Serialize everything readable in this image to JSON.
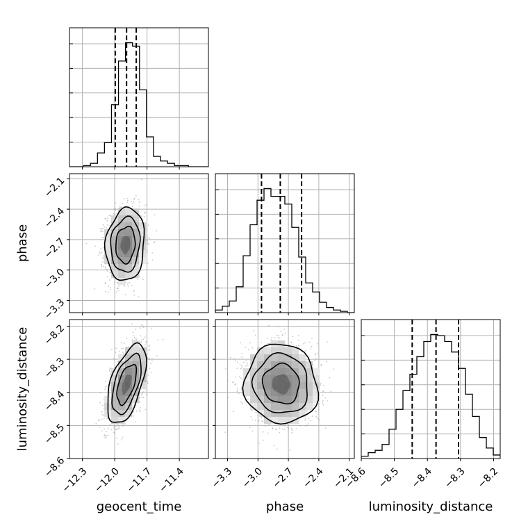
{
  "chart_data": {
    "type": "corner",
    "parameters": [
      "geocent_time",
      "phase",
      "luminosity_distance"
    ],
    "axis_labels": {
      "geocent_time": "geocent_time",
      "phase": "phase",
      "luminosity_distance": "luminosity_distance"
    },
    "ranges": {
      "geocent_time": [
        -12.42,
        -11.13
      ],
      "phase": [
        -3.42,
        -2.05
      ],
      "luminosity_distance": [
        -8.6,
        -8.18
      ]
    },
    "ticks": {
      "geocent_time": [
        -12.3,
        -12.0,
        -11.7,
        -11.4
      ],
      "phase": [
        -3.3,
        -3.0,
        -2.7,
        -2.4,
        -2.1
      ],
      "luminosity_distance": [
        -8.6,
        -8.5,
        -8.4,
        -8.3,
        -8.2
      ]
    },
    "tick_labels": {
      "geocent_time": [
        "−12.3",
        "−12.0",
        "−11.7",
        "−11.4"
      ],
      "phase": [
        "−3.3",
        "−3.0",
        "−2.7",
        "−2.4",
        "−2.1"
      ],
      "luminosity_distance": [
        "−8.6",
        "−8.5",
        "−8.4",
        "−8.3",
        "−8.2"
      ]
    },
    "histograms": {
      "geocent_time": {
        "edges": [
          -12.42,
          -12.355,
          -12.29,
          -12.225,
          -12.16,
          -12.095,
          -12.03,
          -11.965,
          -11.9,
          -11.835,
          -11.77,
          -11.705,
          -11.64,
          -11.575,
          -11.51,
          -11.445,
          -11.38,
          -11.315,
          -11.25,
          -11.185,
          -11.13
        ],
        "counts": [
          0,
          0,
          1,
          3,
          12,
          21,
          54,
          92,
          108,
          105,
          67,
          26,
          9,
          5,
          3,
          1,
          1,
          0,
          0,
          0
        ]
      },
      "phase": {
        "edges": [
          -3.42,
          -3.3515,
          -3.283,
          -3.2145,
          -3.146,
          -3.0775,
          -3.009,
          -2.9405,
          -2.872,
          -2.8035,
          -2.735,
          -2.6665,
          -2.598,
          -2.5295,
          -2.461,
          -2.3925,
          -2.324,
          -2.2555,
          -2.187,
          -2.1185,
          -2.05
        ],
        "counts": [
          2,
          5,
          9,
          20,
          44,
          68,
          87,
          96,
          90,
          90,
          84,
          66,
          43,
          23,
          16,
          8,
          4,
          2,
          1,
          0
        ]
      },
      "luminosity_distance": {
        "edges": [
          -8.6,
          -8.579,
          -8.558,
          -8.537,
          -8.516,
          -8.495,
          -8.474,
          -8.453,
          -8.432,
          -8.411,
          -8.39,
          -8.369,
          -8.348,
          -8.327,
          -8.306,
          -8.285,
          -8.264,
          -8.243,
          -8.222,
          -8.201,
          -8.18
        ],
        "counts": [
          2,
          5,
          7,
          12,
          25,
          42,
          58,
          72,
          87,
          100,
          106,
          105,
          100,
          91,
          77,
          55,
          36,
          18,
          9,
          3
        ]
      }
    },
    "quantiles": {
      "geocent_time": [
        -11.995,
        -11.89,
        -11.8
      ],
      "phase": [
        -2.965,
        -2.78,
        -2.57
      ],
      "luminosity_distance": [
        -8.446,
        -8.374,
        -8.306
      ]
    },
    "posterior_2d": {
      "phase_vs_geocent_time": {
        "x": "geocent_time",
        "y": "phase",
        "center": [
          -11.9,
          -2.75
        ],
        "sigma": [
          0.09,
          0.18
        ],
        "correlation": 0.1
      },
      "luminosity_distance_vs_geocent_time": {
        "x": "geocent_time",
        "y": "luminosity_distance",
        "center": [
          -11.89,
          -8.375
        ],
        "sigma": [
          0.09,
          0.06
        ],
        "correlation": 0.55
      },
      "luminosity_distance_vs_phase": {
        "x": "phase",
        "y": "luminosity_distance",
        "center": [
          -2.77,
          -8.375
        ],
        "sigma": [
          0.18,
          0.06
        ],
        "correlation": -0.05
      }
    },
    "grid": true,
    "colors": {
      "lines": "#000000",
      "grid": "#b0b0b0",
      "scatter": "#9a9a9a"
    }
  }
}
